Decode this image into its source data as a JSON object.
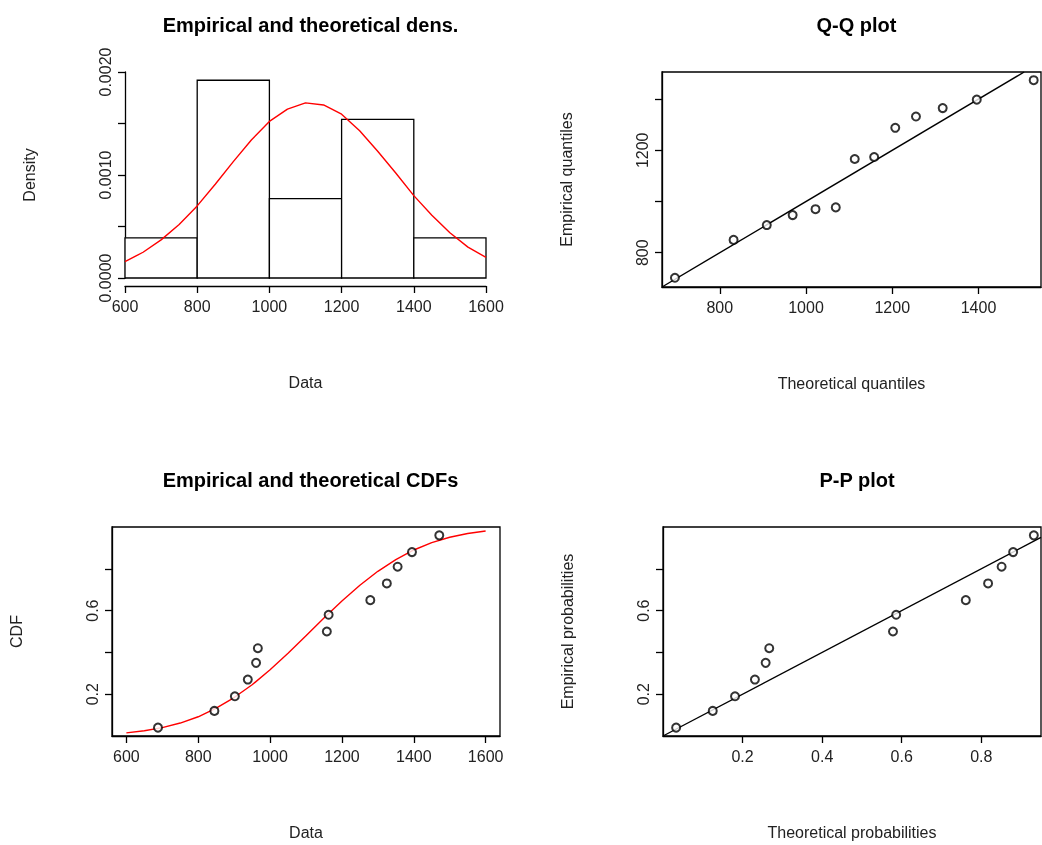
{
  "chart_data": [
    {
      "type": "histogram",
      "title": "Empirical and theoretical dens.",
      "xlabel": "Data",
      "ylabel": "Density",
      "bins": [
        600,
        800,
        1000,
        1200,
        1400,
        1600
      ],
      "values": [
        0.00039,
        0.00192,
        0.00077,
        0.00154,
        0.00039
      ],
      "color": "#ffffff",
      "series": [
        {
          "type": "line",
          "color": "#ff0000",
          "x": [
            600,
            650,
            700,
            750,
            800,
            850,
            900,
            950,
            1000,
            1050,
            1100,
            1150,
            1200,
            1250,
            1300,
            1350,
            1400,
            1450,
            1500,
            1550,
            1600
          ],
          "values": [
            0.00016,
            0.00025,
            0.00037,
            0.00052,
            0.0007,
            0.00091,
            0.00113,
            0.00134,
            0.00152,
            0.00164,
            0.0017,
            0.00168,
            0.00159,
            0.00143,
            0.00123,
            0.00102,
            0.0008,
            0.00061,
            0.00044,
            0.0003,
            0.0002
          ]
        }
      ],
      "xlim": [
        600,
        1600
      ],
      "xticks": [
        600,
        800,
        1000,
        1200,
        1400,
        1600
      ],
      "ylim": [
        0,
        0.002
      ],
      "yticks": [
        {
          "value": 0,
          "label": "0.0000"
        },
        {
          "value": 0.0005,
          "label": null
        },
        {
          "value": 0.001,
          "label": "0.0010"
        },
        {
          "value": 0.0015,
          "label": null
        },
        {
          "value": 0.002,
          "label": "0.0020"
        }
      ]
    },
    {
      "type": "scatter",
      "title": "Q-Q plot",
      "xlabel": "Theoretical quantiles",
      "ylabel": "Empirical quantiles",
      "marker": "circle",
      "series": [
        {
          "type": "scatter",
          "color": "#000000",
          "x": [
            696,
            832,
            909,
            969,
            1022,
            1069,
            1113,
            1158,
            1207,
            1255,
            1317,
            1396,
            1528
          ],
          "values": [
            702,
            850,
            908,
            947,
            970,
            977,
            1166,
            1174,
            1288,
            1332,
            1365,
            1398,
            1474
          ]
        },
        {
          "type": "line",
          "color": "#000000",
          "marker": "none",
          "x": [
            666,
            1506
          ],
          "values": [
            666,
            1506
          ]
        }
      ],
      "xlim": [
        666,
        1545
      ],
      "xticks": [
        800,
        1000,
        1200,
        1400
      ],
      "ylim": [
        666,
        1506
      ],
      "yticks": [
        800,
        {
          "value": 1000,
          "label": null
        },
        1200,
        {
          "value": 1400,
          "label": null
        }
      ]
    },
    {
      "type": "scatter",
      "title": "Empirical and theoretical CDFs",
      "xlabel": "Data",
      "ylabel": "CDF",
      "marker": "circle",
      "series": [
        {
          "type": "line",
          "color": "#ff0000",
          "marker": "none",
          "x": [
            600,
            650,
            700,
            750,
            800,
            850,
            900,
            950,
            1000,
            1050,
            1100,
            1150,
            1200,
            1250,
            1300,
            1350,
            1400,
            1450,
            1500,
            1550,
            1600
          ],
          "values": [
            0.015,
            0.025,
            0.04,
            0.062,
            0.092,
            0.133,
            0.184,
            0.245,
            0.317,
            0.396,
            0.48,
            0.564,
            0.646,
            0.721,
            0.788,
            0.844,
            0.89,
            0.925,
            0.951,
            0.969,
            0.981
          ]
        },
        {
          "type": "scatter",
          "color": "#000000",
          "x": [
            688,
            845,
            902,
            938,
            961,
            966,
            1158,
            1163,
            1279,
            1325,
            1355,
            1395,
            1471
          ],
          "values": [
            0.04,
            0.12,
            0.19,
            0.27,
            0.35,
            0.42,
            0.5,
            0.58,
            0.65,
            0.73,
            0.81,
            0.88,
            0.96
          ]
        }
      ],
      "xlim": [
        560,
        1640
      ],
      "xticks": [
        600,
        800,
        1000,
        1200,
        1400,
        1600
      ],
      "ylim": [
        0,
        1
      ],
      "yticks": [
        0.2,
        {
          "value": 0.4,
          "label": null
        },
        0.6,
        {
          "value": 0.8,
          "label": null
        }
      ]
    },
    {
      "type": "scatter",
      "title": "P-P plot",
      "xlabel": "Theoretical probabilities",
      "ylabel": "Empirical probabilities",
      "marker": "circle",
      "series": [
        {
          "type": "scatter",
          "color": "#000000",
          "x": [
            0.033,
            0.125,
            0.181,
            0.231,
            0.258,
            0.267,
            0.578,
            0.586,
            0.761,
            0.817,
            0.851,
            0.88,
            0.932
          ],
          "values": [
            0.04,
            0.12,
            0.19,
            0.27,
            0.35,
            0.42,
            0.5,
            0.58,
            0.65,
            0.73,
            0.81,
            0.88,
            0.96
          ]
        },
        {
          "type": "line",
          "color": "#000000",
          "marker": "none",
          "x": [
            0,
            0.95
          ],
          "values": [
            0,
            0.95
          ]
        }
      ],
      "xlim": [
        0,
        0.95
      ],
      "xticks": [
        0.2,
        0.4,
        0.6,
        0.8
      ],
      "ylim": [
        0,
        1
      ],
      "yticks": [
        0.2,
        {
          "value": 0.4,
          "label": null
        },
        0.6,
        {
          "value": 0.8,
          "label": null
        }
      ]
    }
  ]
}
